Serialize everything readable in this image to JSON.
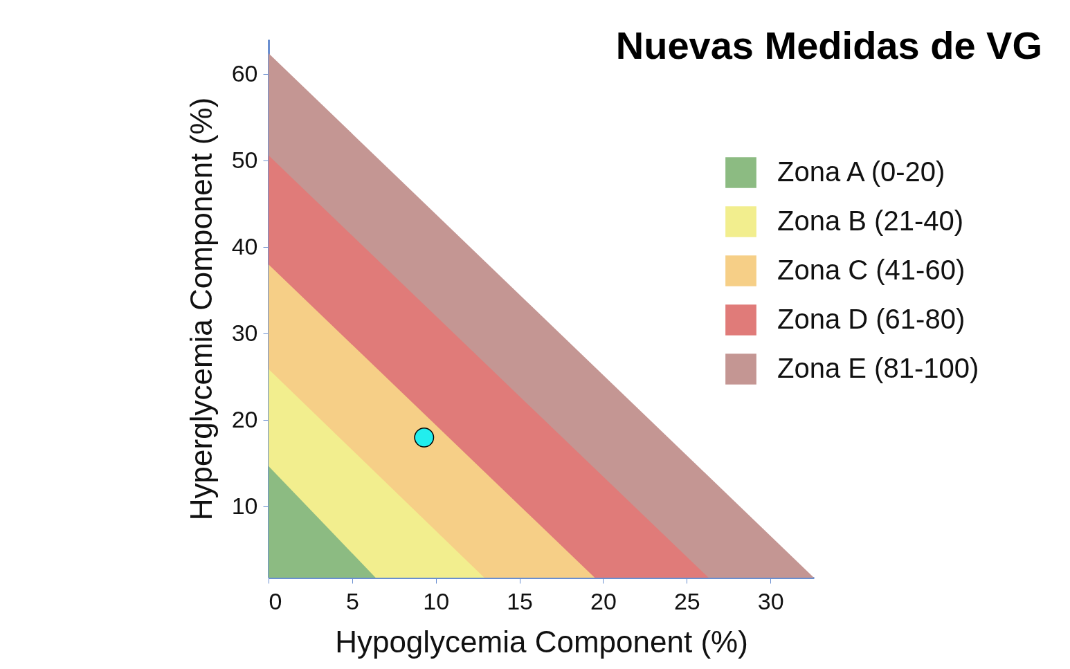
{
  "chart_data": {
    "type": "area",
    "title": "Nuevas Medidas de VG",
    "xlabel": "Hypoglycemia Component (%)",
    "ylabel": "Hyperglycemia Component (%)",
    "xlim": [
      0,
      32.6
    ],
    "ylim": [
      1.8,
      64
    ],
    "xticks": [
      0,
      5,
      10,
      15,
      20,
      25,
      30
    ],
    "yticks": [
      10,
      20,
      30,
      40,
      50,
      60
    ],
    "grid": false,
    "legend": "right",
    "series": [
      {
        "name": "Zona A (0-20)",
        "color": "#8cbb82",
        "x": [
          0,
          6.4
        ],
        "values": [
          14.7,
          1.8
        ]
      },
      {
        "name": "Zona B (21-40)",
        "color": "#f2ee8e",
        "x": [
          0,
          12.9
        ],
        "values": [
          25.9,
          1.8
        ]
      },
      {
        "name": "Zona C (41-60)",
        "color": "#f6cf87",
        "x": [
          0,
          19.5
        ],
        "values": [
          38,
          1.8
        ]
      },
      {
        "name": "Zona D (61-80)",
        "color": "#e07b79",
        "x": [
          0,
          26.3
        ],
        "values": [
          50.6,
          1.8
        ]
      },
      {
        "name": "Zona E (81-100)",
        "color": "#c49693",
        "x": [
          0,
          32.6
        ],
        "values": [
          62.4,
          1.8
        ]
      },
      {
        "type": "scatter",
        "color": "#22eeee",
        "marker": "circle",
        "x": [
          9.3
        ],
        "values": [
          18
        ]
      }
    ]
  }
}
